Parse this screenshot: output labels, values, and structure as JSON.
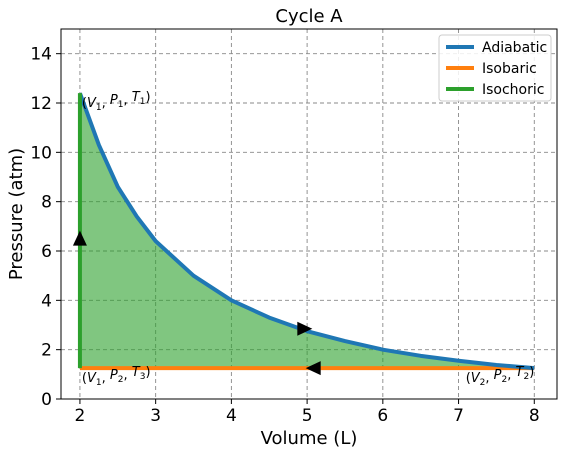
{
  "chart_data": {
    "type": "line",
    "title": "Cycle A",
    "xlabel": "Volume (L)",
    "ylabel": "Pressure (atm)",
    "xlim": [
      1.75,
      8.3
    ],
    "ylim": [
      0,
      15
    ],
    "xticks": [
      2,
      3,
      4,
      5,
      6,
      7,
      8
    ],
    "yticks": [
      0,
      2,
      4,
      6,
      8,
      10,
      12,
      14
    ],
    "grid": true,
    "legend_position": "top-right",
    "colors": {
      "adiabatic": "#1f77b4",
      "isobaric": "#ff7f0e",
      "isochoric": "#2ca02c",
      "fill": "#2ca02c"
    },
    "series": [
      {
        "name": "Adiabatic",
        "kind": "adiabatic",
        "x": [
          2.0,
          2.25,
          2.5,
          2.75,
          3.0,
          3.5,
          4.0,
          4.5,
          5.0,
          5.5,
          6.0,
          6.5,
          7.0,
          7.5,
          8.0
        ],
        "y": [
          12.4,
          10.3,
          8.6,
          7.4,
          6.4,
          5.0,
          4.0,
          3.3,
          2.75,
          2.35,
          2.0,
          1.75,
          1.55,
          1.38,
          1.25
        ]
      },
      {
        "name": "Isobaric",
        "kind": "isobaric",
        "x": [
          2.0,
          8.0
        ],
        "y": [
          1.25,
          1.25
        ]
      },
      {
        "name": "Isochoric",
        "kind": "isochoric",
        "x": [
          2.0,
          2.0
        ],
        "y": [
          1.25,
          12.4
        ]
      }
    ],
    "arrows": [
      {
        "x": 2.0,
        "y": 6.5,
        "direction": "up"
      },
      {
        "x": 4.95,
        "y": 2.85,
        "direction": "right"
      },
      {
        "x": 5.1,
        "y": 1.25,
        "direction": "left"
      }
    ],
    "annotations": [
      {
        "x": 2.0,
        "y": 12.4,
        "text": "(V1, P1, T1)",
        "parts": [
          [
            "V",
            "1"
          ],
          [
            "P",
            "1"
          ],
          [
            "T",
            "1"
          ]
        ],
        "align": "start"
      },
      {
        "x": 2.0,
        "y": 1.25,
        "text": "(V1, P2, T3)",
        "parts": [
          [
            "V",
            "1"
          ],
          [
            "P",
            "2"
          ],
          [
            "T",
            "3"
          ]
        ],
        "align": "start"
      },
      {
        "x": 8.0,
        "y": 1.25,
        "text": "(V2, P2, T2)",
        "parts": [
          [
            "V",
            "2"
          ],
          [
            "P",
            "2"
          ],
          [
            "T",
            "2"
          ]
        ],
        "align": "end"
      }
    ]
  }
}
